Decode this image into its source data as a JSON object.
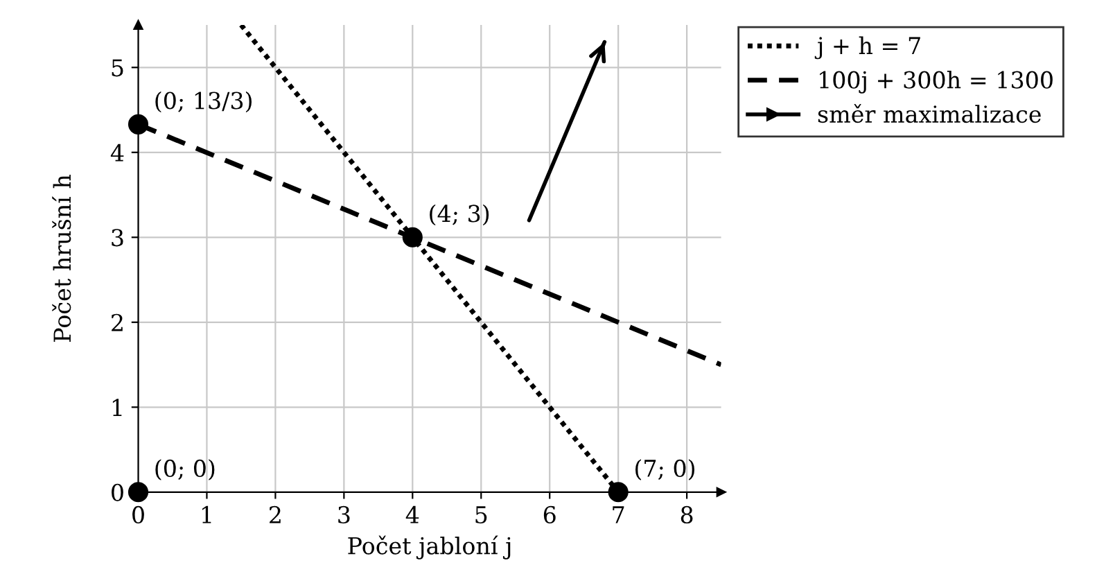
{
  "chart_data": {
    "type": "line",
    "xlabel": "Počet jabloní j",
    "ylabel": "Počet hrušní h",
    "xlim": [
      0,
      8.5
    ],
    "ylim": [
      0,
      5.5
    ],
    "xticks": [
      0,
      1,
      2,
      3,
      4,
      5,
      6,
      7,
      8
    ],
    "yticks": [
      0,
      1,
      2,
      3,
      4,
      5
    ],
    "grid": true,
    "legend": "top right",
    "series": [
      {
        "name": "j + h = 7",
        "color": "#000000",
        "line_style": "dotted",
        "x": [
          1.5,
          7
        ],
        "values": [
          5.5,
          0
        ]
      },
      {
        "name": "100j + 300h = 1300",
        "color": "#000000",
        "line_style": "dashed",
        "x": [
          0,
          8.5
        ],
        "values": [
          4.33,
          1.5
        ]
      },
      {
        "name": "směr maximalizace",
        "color": "#000000",
        "line_style": "solid",
        "x": [
          5.7,
          6.8
        ],
        "values": [
          3.2,
          5.3
        ]
      },
      {
        "type": "scatter",
        "color": "#000000",
        "marker": "circle",
        "x": [
          0,
          0,
          4,
          7
        ],
        "values": [
          0,
          4.33,
          3,
          0
        ]
      }
    ],
    "annotations": [
      {
        "text": "(0; 0)",
        "x": 0,
        "y": 0
      },
      {
        "text": "(0; 13/3)",
        "x": 0,
        "y": 4.33
      },
      {
        "text": "(4; 3)",
        "x": 4,
        "y": 3
      },
      {
        "text": "(7; 0)",
        "x": 7,
        "y": 0
      }
    ]
  }
}
